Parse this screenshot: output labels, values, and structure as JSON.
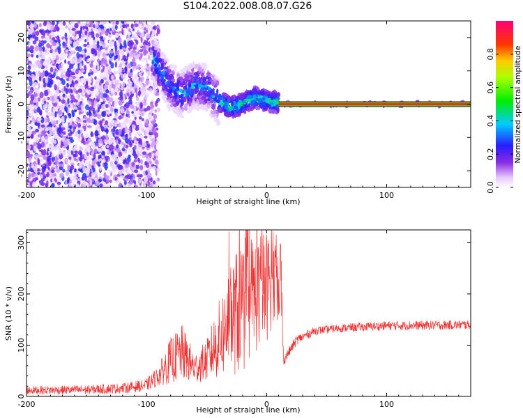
{
  "figure": {
    "title": "S104.2022.008.08.07.G26"
  },
  "chart_data": [
    {
      "type": "heatmap",
      "title": "S104.2022.008.08.07.G26",
      "xlabel": "Height of straight line (km)",
      "ylabel": "Frequency (Hz)",
      "xlim": [
        -200,
        170
      ],
      "ylim": [
        -25,
        25
      ],
      "x_ticks": [
        -200,
        -100,
        0,
        100
      ],
      "y_ticks": [
        -20,
        -10,
        0,
        10,
        20
      ],
      "colorbar": {
        "label": "Normalized spectral amplitude",
        "range": [
          0,
          1
        ],
        "ticks": [
          0.0,
          0.2,
          0.4,
          0.6,
          0.8
        ],
        "colormap": "rainbow (violet → blue → cyan → green → yellow → red → magenta)"
      },
      "structure": {
        "noise_region_x": [
          -200,
          -95
        ],
        "noise_amplitude": "low (≈0.0–0.2), scattered across full frequency range",
        "transition_region_x": [
          -95,
          10
        ],
        "transition_center_freq_hz": [
          {
            "x": -90,
            "y": 11
          },
          {
            "x": -80,
            "y": 5
          },
          {
            "x": -70,
            "y": 3
          },
          {
            "x": -60,
            "y": 6
          },
          {
            "x": -50,
            "y": 5
          },
          {
            "x": -40,
            "y": 1
          },
          {
            "x": -30,
            "y": -1
          },
          {
            "x": -20,
            "y": 0
          },
          {
            "x": -10,
            "y": 2
          },
          {
            "x": 0,
            "y": 1
          },
          {
            "x": 10,
            "y": 0.5
          }
        ],
        "tone_region_x": [
          10,
          170
        ],
        "tone_frequency_hz": 0,
        "tone_amplitude": "≈0.9–1.0 (red/magenta line at 0 Hz)"
      }
    },
    {
      "type": "line",
      "xlabel": "Height of straight line (km)",
      "ylabel": "SNR (10 * v/v)",
      "xlim": [
        -200,
        170
      ],
      "ylim": [
        0,
        325
      ],
      "x_ticks": [
        -200,
        -100,
        0,
        100
      ],
      "y_ticks": [
        0,
        100,
        200,
        300
      ],
      "series": [
        {
          "color": "#ee3333",
          "envelope": [
            {
              "x": -200,
              "y": 12,
              "spread": 8
            },
            {
              "x": -150,
              "y": 13,
              "spread": 9
            },
            {
              "x": -120,
              "y": 16,
              "spread": 10
            },
            {
              "x": -100,
              "y": 22,
              "spread": 12
            },
            {
              "x": -90,
              "y": 40,
              "spread": 20
            },
            {
              "x": -80,
              "y": 70,
              "spread": 45
            },
            {
              "x": -70,
              "y": 85,
              "spread": 55
            },
            {
              "x": -60,
              "y": 55,
              "spread": 30
            },
            {
              "x": -50,
              "y": 70,
              "spread": 40
            },
            {
              "x": -40,
              "y": 110,
              "spread": 75
            },
            {
              "x": -30,
              "y": 150,
              "spread": 110
            },
            {
              "x": -20,
              "y": 180,
              "spread": 140
            },
            {
              "x": -10,
              "y": 200,
              "spread": 120
            },
            {
              "x": 0,
              "y": 215,
              "spread": 110
            },
            {
              "x": 5,
              "y": 225,
              "spread": 90
            },
            {
              "x": 12,
              "y": 240,
              "spread": 80
            },
            {
              "x": 14,
              "y": 70,
              "spread": 10
            },
            {
              "x": 25,
              "y": 110,
              "spread": 10
            },
            {
              "x": 40,
              "y": 128,
              "spread": 8
            },
            {
              "x": 60,
              "y": 133,
              "spread": 8
            },
            {
              "x": 100,
              "y": 138,
              "spread": 9
            },
            {
              "x": 140,
              "y": 139,
              "spread": 9
            },
            {
              "x": 170,
              "y": 140,
              "spread": 9
            }
          ]
        }
      ]
    }
  ]
}
